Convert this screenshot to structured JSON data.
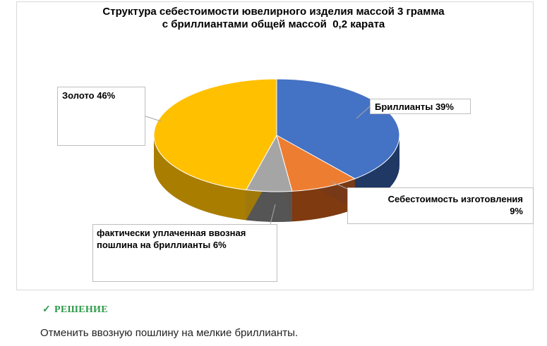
{
  "chart_data": {
    "type": "pie",
    "title_lines": [
      "Структура себестоимости ювелирного изделия массой 3 грамма",
      "с бриллиантами общей массой  0,2 карата"
    ],
    "slices": [
      {
        "name": "Бриллианты",
        "value": 39,
        "color": "#4472c4",
        "side_color": "#1f3864"
      },
      {
        "name": "Себестоимость изготовления",
        "value": 9,
        "color": "#ed7d31",
        "side_color": "#7f3a10"
      },
      {
        "name": "фактически уплаченная  ввозная пошлина на бриллианты",
        "value": 6,
        "color": "#a5a5a5",
        "side_color": "#555555"
      },
      {
        "name": "Золото",
        "value": 46,
        "color": "#ffc000",
        "side_color": "#a97d00"
      }
    ],
    "labels": {
      "gold": "Золото 46%",
      "diamonds": "Бриллианты 39%",
      "cost_line1": "Себестоимость изготовления",
      "cost_line2": "9%",
      "duty_line1": "фактически уплаченная  ввозная",
      "duty_line2": "пошлина на бриллианты 6%"
    }
  },
  "solution": {
    "check": "✓",
    "heading": "РЕШЕНИЕ",
    "text": "Отменить ввозную пошлину на мелкие бриллианты."
  }
}
